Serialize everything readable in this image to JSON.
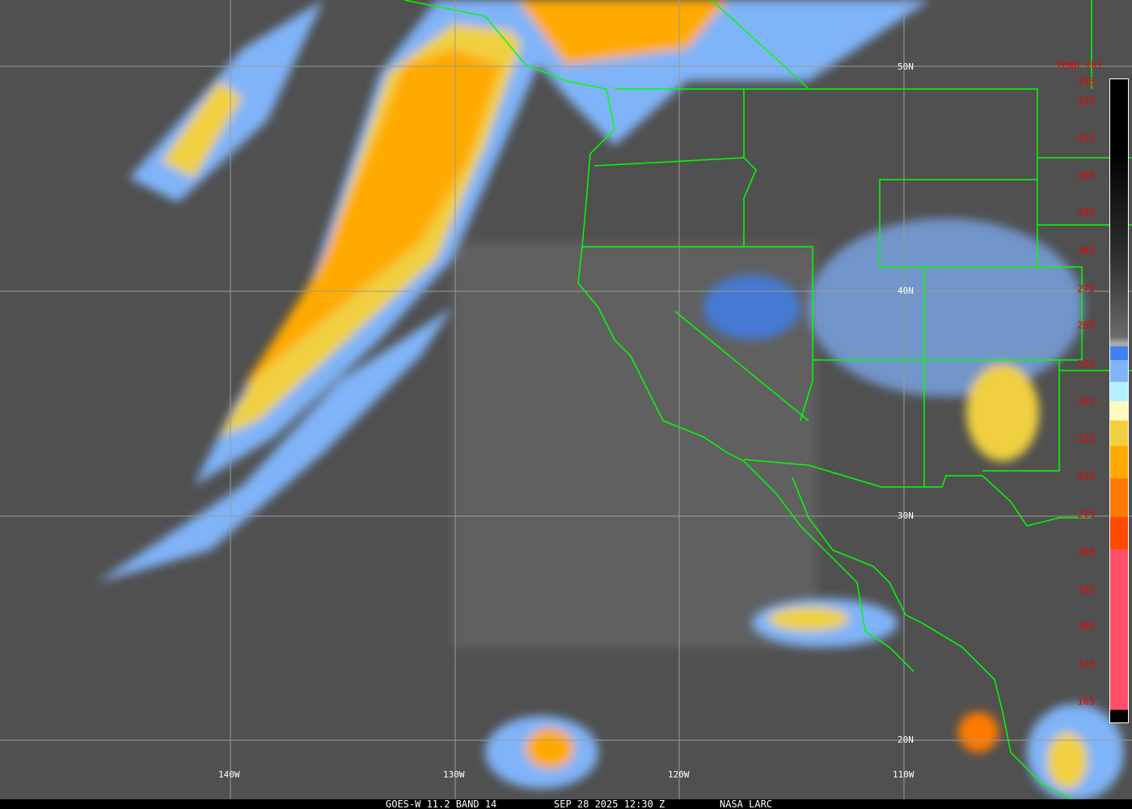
{
  "map": {
    "colorbar_title": "Temp [K]",
    "colorbar_labels": [
      "330",
      "325",
      "315",
      "305",
      "295",
      "285",
      "275",
      "265",
      "255",
      "245",
      "235",
      "225",
      "215",
      "205",
      "195",
      "185",
      "175",
      "165"
    ],
    "lat_labels": [
      "50N",
      "40N",
      "30N",
      "20N"
    ],
    "lon_labels": [
      "140W",
      "130W",
      "120W",
      "110W"
    ],
    "border_color": "#00ff00",
    "label_color": "#ff0000"
  },
  "caption": {
    "satellite": "GOES-W 11.2 BAND 14",
    "datetime": "SEP 28 2025 12:30 Z",
    "source": "NASA LARC"
  }
}
